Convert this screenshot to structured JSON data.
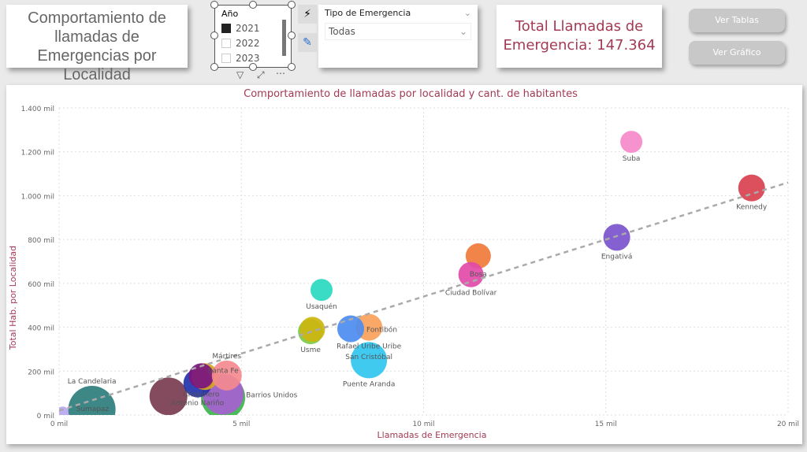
{
  "header": {
    "title": "Comportamiento de llamadas de Emergencias por Localidad",
    "total_label": "Total Llamadas de Emergencia: 147.364"
  },
  "year_slicer": {
    "title": "Año",
    "options": [
      {
        "label": "2021",
        "checked": true
      },
      {
        "label": "2022",
        "checked": false
      },
      {
        "label": "2023",
        "checked": false
      }
    ]
  },
  "type_slicer": {
    "title": "Tipo de Emergencia",
    "selected": "Todas"
  },
  "buttons": {
    "tables": "Ver Tablas",
    "chart": "Ver Gráfico"
  },
  "icons": {
    "filter": "filter-icon",
    "focus": "focus-mode-icon",
    "more": "more-options-icon",
    "more_glyph": "⋯"
  },
  "chart_data": {
    "type": "scatter",
    "title": "Comportamiento de llamadas por localidad y cant. de habitantes",
    "xlabel": "Llamadas de Emergencia",
    "ylabel": "Total Hab. por Localidad",
    "xlim": [
      0,
      20
    ],
    "ylim": [
      0,
      1400
    ],
    "xticks": [
      "0 mil",
      "5 mil",
      "10 mil",
      "15 mil",
      "20 mil"
    ],
    "yticks": [
      "0 mil",
      "200 mil",
      "400 mil",
      "600 mil",
      "800 mil",
      "1.000 mil",
      "1.200 mil",
      "1.400 mil"
    ],
    "grid": true,
    "trendline": {
      "from": [
        0,
        20
      ],
      "to": [
        20,
        1060
      ],
      "color": "#aaaaaa"
    },
    "points": [
      {
        "name": "Sumapaz",
        "x": 0.1,
        "y": 10,
        "size": 8,
        "color": "#b9a6f0"
      },
      {
        "name": "La Candelaria",
        "x": 0.9,
        "y": 25,
        "size": 30,
        "color": "#2e7d7d"
      },
      {
        "name": "",
        "x": 3.0,
        "y": 85,
        "size": 24,
        "color": "#7a3b4f"
      },
      {
        "name": "Santa Fe",
        "x": 4.5,
        "y": 80,
        "size": 28,
        "color": "#3cb44b"
      },
      {
        "name": "Barrios Unidos",
        "x": 4.5,
        "y": 95,
        "size": 26,
        "color": "#a65fd0"
      },
      {
        "name": "Antonio Nariño",
        "x": 3.8,
        "y": 145,
        "size": 18,
        "color": "#2233aa"
      },
      {
        "name": "",
        "x": 4.0,
        "y": 175,
        "size": 17,
        "color": "#d9a520"
      },
      {
        "name": "Chapinero",
        "x": 3.9,
        "y": 178,
        "size": 16,
        "color": "#7a1580"
      },
      {
        "name": "Mártires",
        "x": 4.6,
        "y": 180,
        "size": 19,
        "color": "#f48a8f"
      },
      {
        "name": "Usaquén",
        "x": 7.2,
        "y": 570,
        "size": 14,
        "color": "#2ad9c0"
      },
      {
        "name": "Usme",
        "x": 6.9,
        "y": 380,
        "size": 16,
        "color": "#7acb4a"
      },
      {
        "name": "",
        "x": 6.95,
        "y": 390,
        "size": 16,
        "color": "#cdb610"
      },
      {
        "name": "Rafael Uribe Uribe",
        "x": 8.5,
        "y": 400,
        "size": 17,
        "color": "#f9a15a"
      },
      {
        "name": "Fontibón",
        "x": 8.0,
        "y": 393,
        "size": 17,
        "color": "#4c8df0"
      },
      {
        "name": "San Cristóbal",
        "x": 8.5,
        "y": 330,
        "size": 0,
        "color": "#f9a15a"
      },
      {
        "name": "Puente Aranda",
        "x": 8.5,
        "y": 250,
        "size": 23,
        "color": "#31c5ef"
      },
      {
        "name": "Bosa",
        "x": 11.5,
        "y": 725,
        "size": 16,
        "color": "#ef7a3a"
      },
      {
        "name": "Ciudad Bolívar",
        "x": 11.3,
        "y": 640,
        "size": 16,
        "color": "#e24aa8"
      },
      {
        "name": "Engativá",
        "x": 15.3,
        "y": 810,
        "size": 17,
        "color": "#7b52cc"
      },
      {
        "name": "Suba",
        "x": 15.7,
        "y": 1245,
        "size": 14,
        "color": "#f58acb"
      },
      {
        "name": "Kennedy",
        "x": 19.0,
        "y": 1035,
        "size": 17,
        "color": "#d9404e"
      }
    ]
  }
}
